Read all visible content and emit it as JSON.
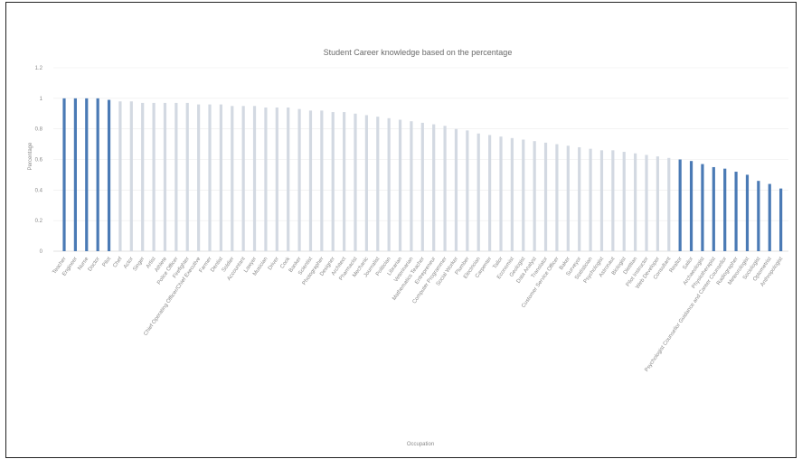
{
  "chart_data": {
    "type": "bar",
    "title": "Student Career knowledge based on the percentage",
    "xlabel": "Occupation",
    "ylabel": "Percentage",
    "ylim": [
      0,
      1.2
    ],
    "yticks": [
      "0",
      "0.2",
      "0.4",
      "0.6",
      "0.8",
      "1",
      "1.2"
    ],
    "grid": true,
    "legend": "none",
    "highlight_color": "#4a7ab5",
    "muted_color": "#d3d9e2",
    "categories": [
      "Teacher",
      "Engineer",
      "Nurse",
      "Doctor",
      "Pilot",
      "Chef",
      "Actor",
      "Singer",
      "Artist",
      "Athlete",
      "Police Officer",
      "Firefighter",
      "Chief Operating Officer/Chief Executive",
      "Farmer",
      "Dentist",
      "Soldier",
      "Accountant",
      "Lawyer",
      "Musician",
      "Driver",
      "Cook",
      "Banker",
      "Scientist",
      "Photographer",
      "Designer",
      "Architect",
      "Pharmacist",
      "Mechanic",
      "Journalist",
      "Politician",
      "Librarian",
      "Veterinarian",
      "Mathematics Teacher",
      "Entrepreneur",
      "Computer Programmer",
      "Social Worker",
      "Plumber",
      "Electrician",
      "Carpenter",
      "Tailor",
      "Economist",
      "Geologist",
      "Data Analyst",
      "Translator",
      "Customer Service Officer",
      "Baker",
      "Surveyor",
      "Statistician",
      "Psychologist",
      "Astronaut",
      "Biologist",
      "Dietitian",
      "Pilot Instructor",
      "Web Developer",
      "Consultant",
      "Realtor",
      "Sailor",
      "Archaeologist",
      "Physiotherapist",
      "Psychologist Counsellor Guidance and Career Counsellor",
      "Radiographer",
      "Meteorologist",
      "Sociologist",
      "Optometrist",
      "Anthropologist"
    ],
    "values": [
      1.0,
      1.0,
      1.0,
      1.0,
      0.99,
      0.98,
      0.98,
      0.97,
      0.97,
      0.97,
      0.97,
      0.97,
      0.96,
      0.96,
      0.96,
      0.95,
      0.95,
      0.95,
      0.94,
      0.94,
      0.94,
      0.93,
      0.92,
      0.92,
      0.91,
      0.91,
      0.9,
      0.89,
      0.88,
      0.87,
      0.86,
      0.85,
      0.84,
      0.83,
      0.82,
      0.8,
      0.79,
      0.77,
      0.76,
      0.75,
      0.74,
      0.73,
      0.72,
      0.71,
      0.7,
      0.69,
      0.68,
      0.67,
      0.66,
      0.66,
      0.65,
      0.64,
      0.63,
      0.62,
      0.61,
      0.6,
      0.59,
      0.57,
      0.55,
      0.54,
      0.52,
      0.5,
      0.46,
      0.44,
      0.41
    ],
    "highlighted_indices": [
      0,
      1,
      2,
      3,
      4,
      55,
      56,
      57,
      58,
      59,
      60,
      61,
      62,
      63,
      64
    ]
  }
}
